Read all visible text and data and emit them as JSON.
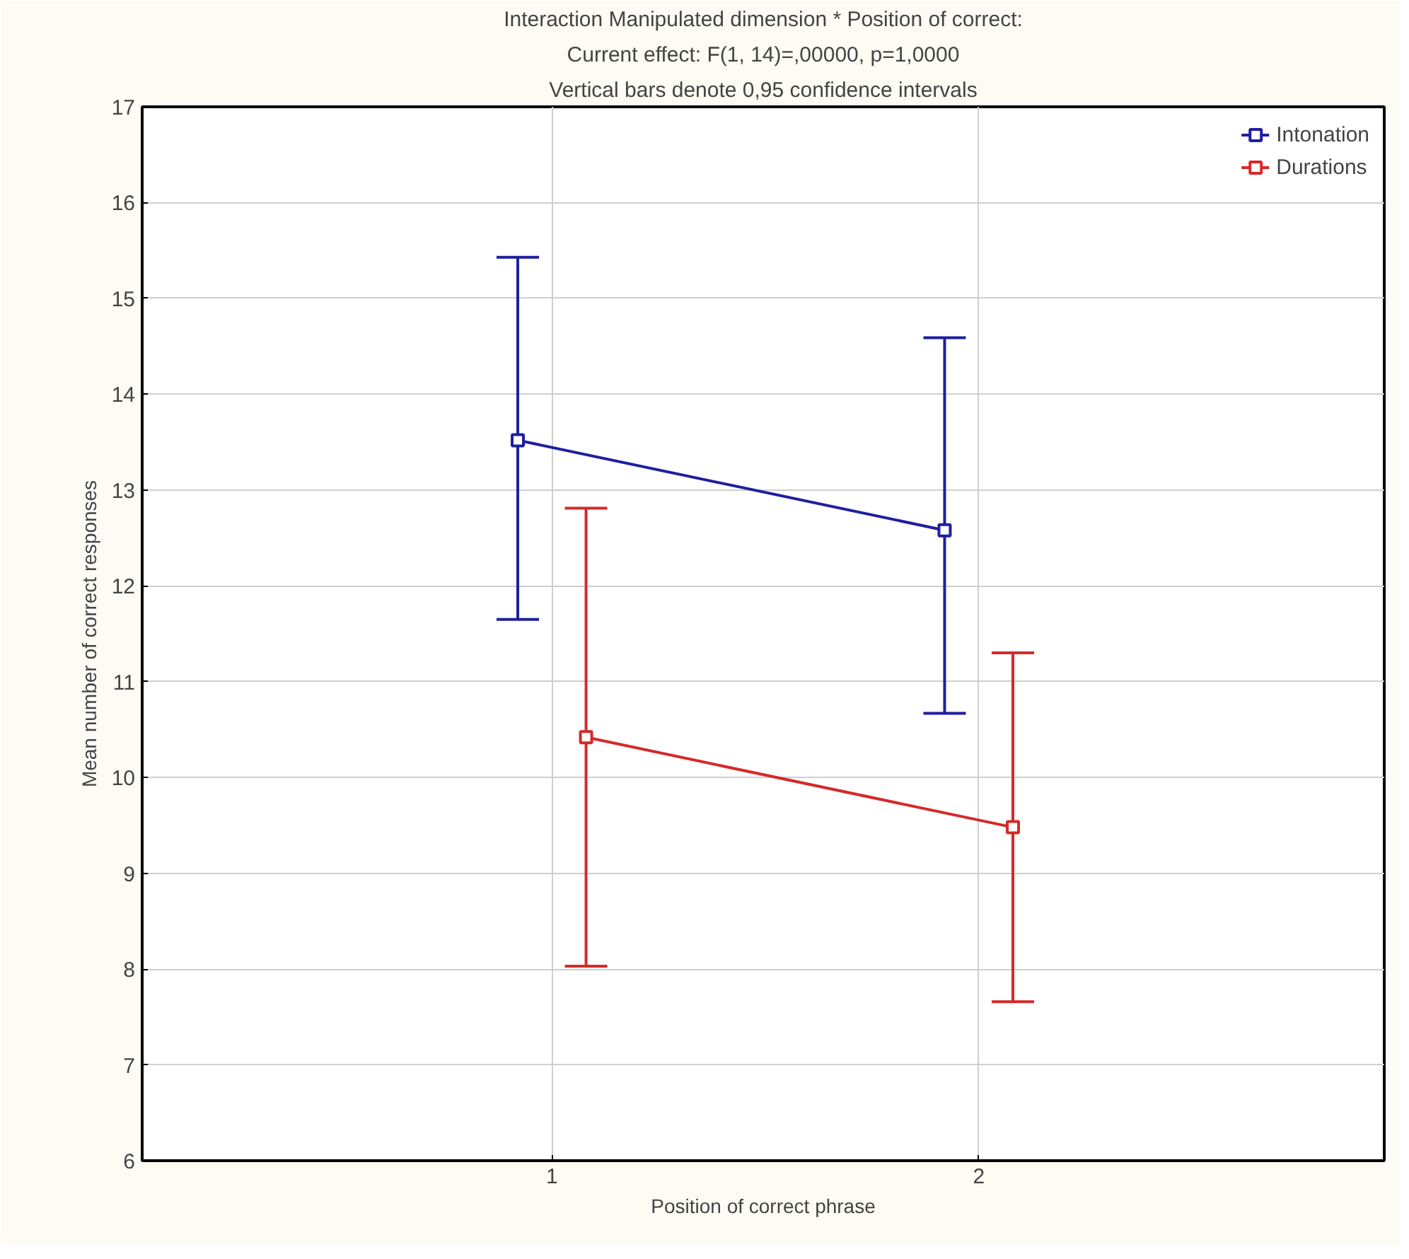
{
  "chart_data": {
    "type": "line",
    "title": "Interaction Manipulated dimension * Position of correct:",
    "subtitle": "Current effect: F(1, 14)=,00000, p=1,0000",
    "annotations": [
      "Vertical bars denote 0,95 confidence intervals"
    ],
    "xlabel": "Position of correct phrase",
    "ylabel": "Mean number of correct responses",
    "series": [
      {
        "name": "Intonation",
        "color": "#1f1f9e",
        "x": [
          0.92,
          1.92
        ],
        "values": [
          13.52,
          12.58
        ],
        "errors": [
          [
            11.65,
            15.43
          ],
          [
            10.67,
            14.59
          ]
        ]
      },
      {
        "name": "Durations",
        "color": "#d42a2a",
        "x": [
          1.08,
          2.08
        ],
        "values": [
          10.42,
          9.48
        ],
        "errors": [
          [
            8.03,
            12.81
          ],
          [
            7.66,
            11.3
          ]
        ]
      }
    ],
    "xlim": [
      0.04,
      2.95
    ],
    "xticks": [
      1,
      2
    ],
    "ylim": [
      6,
      17
    ],
    "yticks": [
      6,
      7,
      8,
      9,
      10,
      11,
      12,
      13,
      14,
      15,
      16,
      17
    ],
    "grid": true,
    "legend": "top right",
    "marker": "square",
    "line_style": "solid"
  }
}
